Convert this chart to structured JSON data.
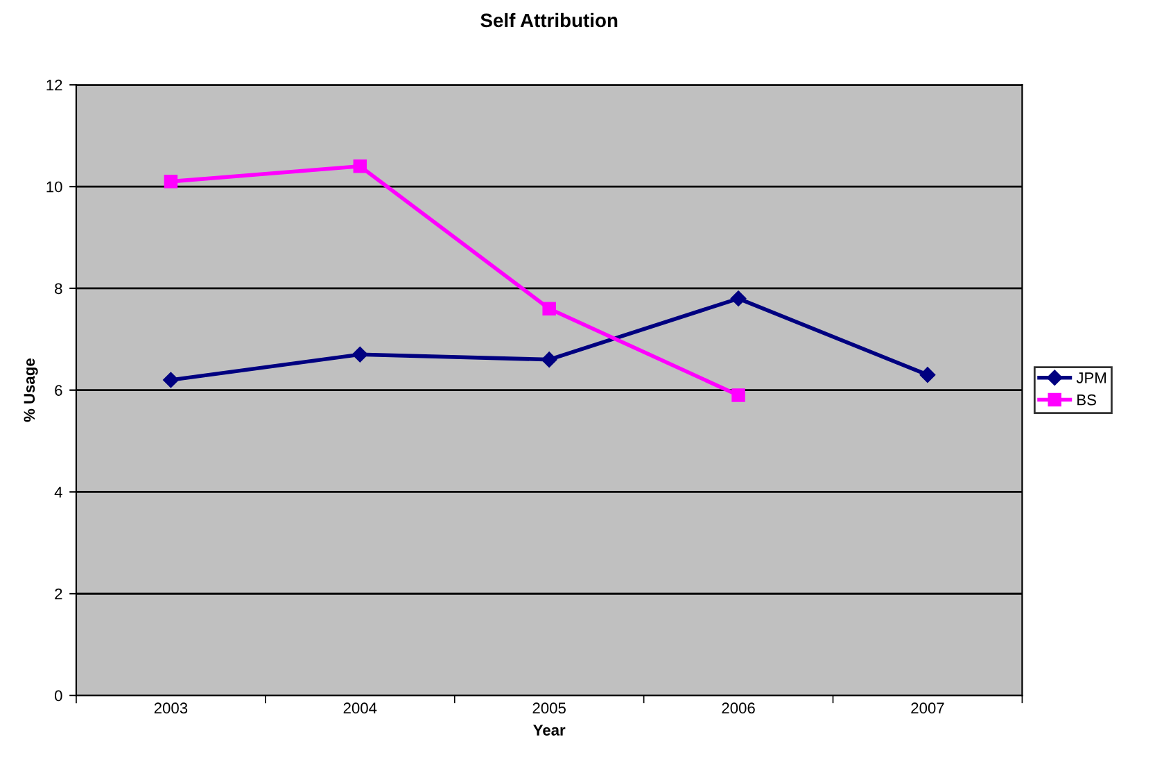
{
  "chart_data": {
    "type": "line",
    "title": "Self Attribution",
    "xlabel": "Year",
    "ylabel": "% Usage",
    "categories": [
      "2003",
      "2004",
      "2005",
      "2006",
      "2007"
    ],
    "series": [
      {
        "name": "JPM",
        "color": "#000080",
        "marker": "diamond",
        "values": [
          6.2,
          6.7,
          6.6,
          7.8,
          6.3
        ]
      },
      {
        "name": "BS",
        "color": "#ff00ff",
        "marker": "square",
        "values": [
          10.1,
          10.4,
          7.6,
          5.9,
          null
        ]
      }
    ],
    "ylim": [
      0,
      12
    ],
    "yticks": [
      0,
      2,
      4,
      6,
      8,
      10,
      12
    ],
    "grid": "y",
    "legend": "right"
  }
}
